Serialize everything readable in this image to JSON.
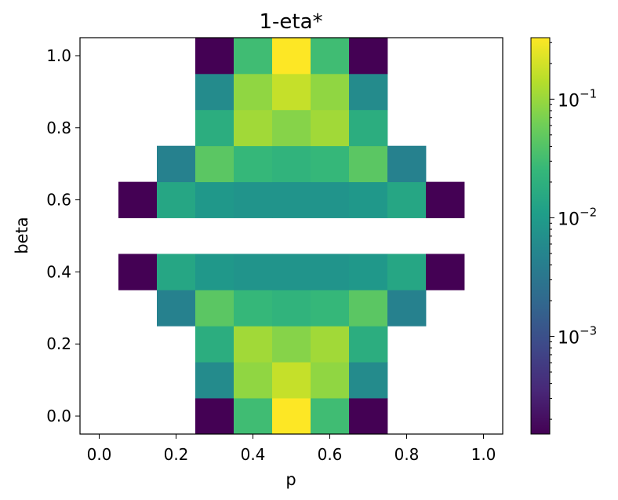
{
  "chart_data": {
    "type": "heatmap",
    "title": "1-eta*",
    "xlabel": "p",
    "ylabel": "beta",
    "x": [
      0.0,
      0.1,
      0.2,
      0.3,
      0.4,
      0.5,
      0.6,
      0.7,
      0.8,
      0.9,
      1.0
    ],
    "y": [
      0.0,
      0.1,
      0.2,
      0.3,
      0.4,
      0.5,
      0.6,
      0.7,
      0.8,
      0.9,
      1.0
    ],
    "xlim": [
      -0.05,
      1.05
    ],
    "ylim": [
      -0.05,
      1.05
    ],
    "xticks": [
      "0.0",
      "0.2",
      "0.4",
      "0.6",
      "0.8",
      "1.0"
    ],
    "yticks": [
      "0.0",
      "0.2",
      "0.4",
      "0.6",
      "0.8",
      "1.0"
    ],
    "colorscale": "viridis",
    "color_scale_type": "log",
    "color_range": [
      0.00015,
      0.33
    ],
    "colorbar_ticks": [
      {
        "value": 0.1,
        "base": "10",
        "exp": "−1"
      },
      {
        "value": 0.01,
        "base": "10",
        "exp": "−2"
      },
      {
        "value": 0.001,
        "base": "10",
        "exp": "−3"
      }
    ],
    "missing_value_color": "#ffffff",
    "values": [
      [
        null,
        null,
        null,
        0.00015,
        0.03,
        0.33,
        0.03,
        0.00015,
        null,
        null,
        null
      ],
      [
        null,
        null,
        null,
        0.006,
        0.09,
        0.17,
        0.09,
        0.006,
        null,
        null,
        null
      ],
      [
        null,
        null,
        null,
        0.018,
        0.11,
        0.08,
        0.11,
        0.018,
        null,
        null,
        null
      ],
      [
        null,
        null,
        0.0045,
        0.045,
        0.025,
        0.022,
        0.025,
        0.045,
        0.0045,
        null,
        null
      ],
      [
        null,
        0.00015,
        0.014,
        0.009,
        0.008,
        0.008,
        0.008,
        0.009,
        0.014,
        0.00015,
        null
      ],
      [
        null,
        null,
        null,
        null,
        null,
        null,
        null,
        null,
        null,
        null,
        null
      ],
      [
        null,
        0.00015,
        0.014,
        0.009,
        0.008,
        0.008,
        0.008,
        0.009,
        0.014,
        0.00015,
        null
      ],
      [
        null,
        null,
        0.0045,
        0.045,
        0.025,
        0.022,
        0.025,
        0.045,
        0.0045,
        null,
        null
      ],
      [
        null,
        null,
        null,
        0.018,
        0.11,
        0.08,
        0.11,
        0.018,
        null,
        null,
        null
      ],
      [
        null,
        null,
        null,
        0.006,
        0.09,
        0.17,
        0.09,
        0.006,
        null,
        null,
        null
      ],
      [
        null,
        null,
        null,
        0.00015,
        0.03,
        0.33,
        0.03,
        0.00015,
        null,
        null,
        null
      ]
    ]
  }
}
